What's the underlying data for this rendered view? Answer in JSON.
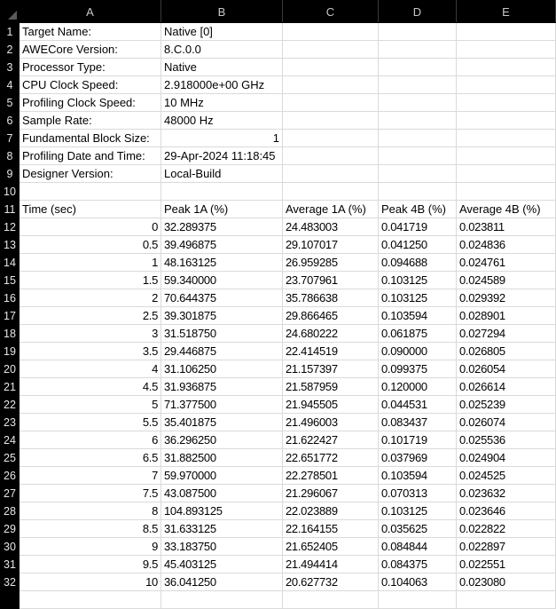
{
  "columns": [
    "A",
    "B",
    "C",
    "D",
    "E"
  ],
  "rows": [
    {
      "n": "1",
      "cells": [
        "Target Name:",
        "Native [0]",
        "",
        "",
        ""
      ]
    },
    {
      "n": "2",
      "cells": [
        "AWECore Version:",
        "8.C.0.0",
        "",
        "",
        ""
      ]
    },
    {
      "n": "3",
      "cells": [
        "Processor Type:",
        "Native",
        "",
        "",
        ""
      ]
    },
    {
      "n": "4",
      "cells": [
        "CPU Clock Speed:",
        "2.918000e+00 GHz",
        "",
        "",
        ""
      ]
    },
    {
      "n": "5",
      "cells": [
        "Profiling Clock Speed:",
        "10 MHz",
        "",
        "",
        ""
      ]
    },
    {
      "n": "6",
      "cells": [
        "Sample Rate:",
        "48000 Hz",
        "",
        "",
        ""
      ]
    },
    {
      "n": "7",
      "cells": [
        "Fundamental Block Size:",
        "1",
        "",
        "",
        ""
      ],
      "num": [
        1
      ]
    },
    {
      "n": "8",
      "cells": [
        "Profiling Date and Time:",
        "29-Apr-2024 11:18:45",
        "",
        "",
        ""
      ]
    },
    {
      "n": "9",
      "cells": [
        "Designer Version:",
        "Local-Build",
        "",
        "",
        ""
      ]
    },
    {
      "n": "10",
      "cells": [
        "",
        "",
        "",
        "",
        ""
      ]
    },
    {
      "n": "11",
      "cells": [
        "Time (sec)",
        "Peak 1A (%)",
        "Average 1A (%)",
        "Peak 4B (%)",
        "Average 4B (%)"
      ]
    },
    {
      "n": "12",
      "cells": [
        "0",
        "32.289375",
        "24.483003",
        "0.041719",
        "0.023811"
      ],
      "num": [
        0
      ]
    },
    {
      "n": "13",
      "cells": [
        "0.5",
        "39.496875",
        "29.107017",
        "0.041250",
        "0.024836"
      ],
      "num": [
        0
      ]
    },
    {
      "n": "14",
      "cells": [
        "1",
        "48.163125",
        "26.959285",
        "0.094688",
        "0.024761"
      ],
      "num": [
        0
      ]
    },
    {
      "n": "15",
      "cells": [
        "1.5",
        "59.340000",
        "23.707961",
        "0.103125",
        "0.024589"
      ],
      "num": [
        0
      ]
    },
    {
      "n": "16",
      "cells": [
        "2",
        "70.644375",
        "35.786638",
        "0.103125",
        "0.029392"
      ],
      "num": [
        0
      ]
    },
    {
      "n": "17",
      "cells": [
        "2.5",
        "39.301875",
        "29.866465",
        "0.103594",
        "0.028901"
      ],
      "num": [
        0
      ]
    },
    {
      "n": "18",
      "cells": [
        "3",
        "31.518750",
        "24.680222",
        "0.061875",
        "0.027294"
      ],
      "num": [
        0
      ]
    },
    {
      "n": "19",
      "cells": [
        "3.5",
        "29.446875",
        "22.414519",
        "0.090000",
        "0.026805"
      ],
      "num": [
        0
      ]
    },
    {
      "n": "20",
      "cells": [
        "4",
        "31.106250",
        "21.157397",
        "0.099375",
        "0.026054"
      ],
      "num": [
        0
      ]
    },
    {
      "n": "21",
      "cells": [
        "4.5",
        "31.936875",
        "21.587959",
        "0.120000",
        "0.026614"
      ],
      "num": [
        0
      ]
    },
    {
      "n": "22",
      "cells": [
        "5",
        "71.377500",
        "21.945505",
        "0.044531",
        "0.025239"
      ],
      "num": [
        0
      ]
    },
    {
      "n": "23",
      "cells": [
        "5.5",
        "35.401875",
        "21.496003",
        "0.083437",
        "0.026074"
      ],
      "num": [
        0
      ]
    },
    {
      "n": "24",
      "cells": [
        "6",
        "36.296250",
        "21.622427",
        "0.101719",
        "0.025536"
      ],
      "num": [
        0
      ]
    },
    {
      "n": "25",
      "cells": [
        "6.5",
        "31.882500",
        "22.651772",
        "0.037969",
        "0.024904"
      ],
      "num": [
        0
      ]
    },
    {
      "n": "26",
      "cells": [
        "7",
        "59.970000",
        "22.278501",
        "0.103594",
        "0.024525"
      ],
      "num": [
        0
      ]
    },
    {
      "n": "27",
      "cells": [
        "7.5",
        "43.087500",
        "21.296067",
        "0.070313",
        "0.023632"
      ],
      "num": [
        0
      ]
    },
    {
      "n": "28",
      "cells": [
        "8",
        "104.893125",
        "22.023889",
        "0.103125",
        "0.023646"
      ],
      "num": [
        0
      ]
    },
    {
      "n": "29",
      "cells": [
        "8.5",
        "31.633125",
        "22.164155",
        "0.035625",
        "0.022822"
      ],
      "num": [
        0
      ]
    },
    {
      "n": "30",
      "cells": [
        "9",
        "33.183750",
        "21.652405",
        "0.084844",
        "0.022897"
      ],
      "num": [
        0
      ]
    },
    {
      "n": "31",
      "cells": [
        "9.5",
        "45.403125",
        "21.494414",
        "0.084375",
        "0.022551"
      ],
      "num": [
        0
      ]
    },
    {
      "n": "32",
      "cells": [
        "10",
        "36.041250",
        "20.627732",
        "0.104063",
        "0.023080"
      ],
      "num": [
        0
      ]
    },
    {
      "n": "",
      "cells": [
        "",
        "",
        "",
        "",
        ""
      ]
    }
  ]
}
